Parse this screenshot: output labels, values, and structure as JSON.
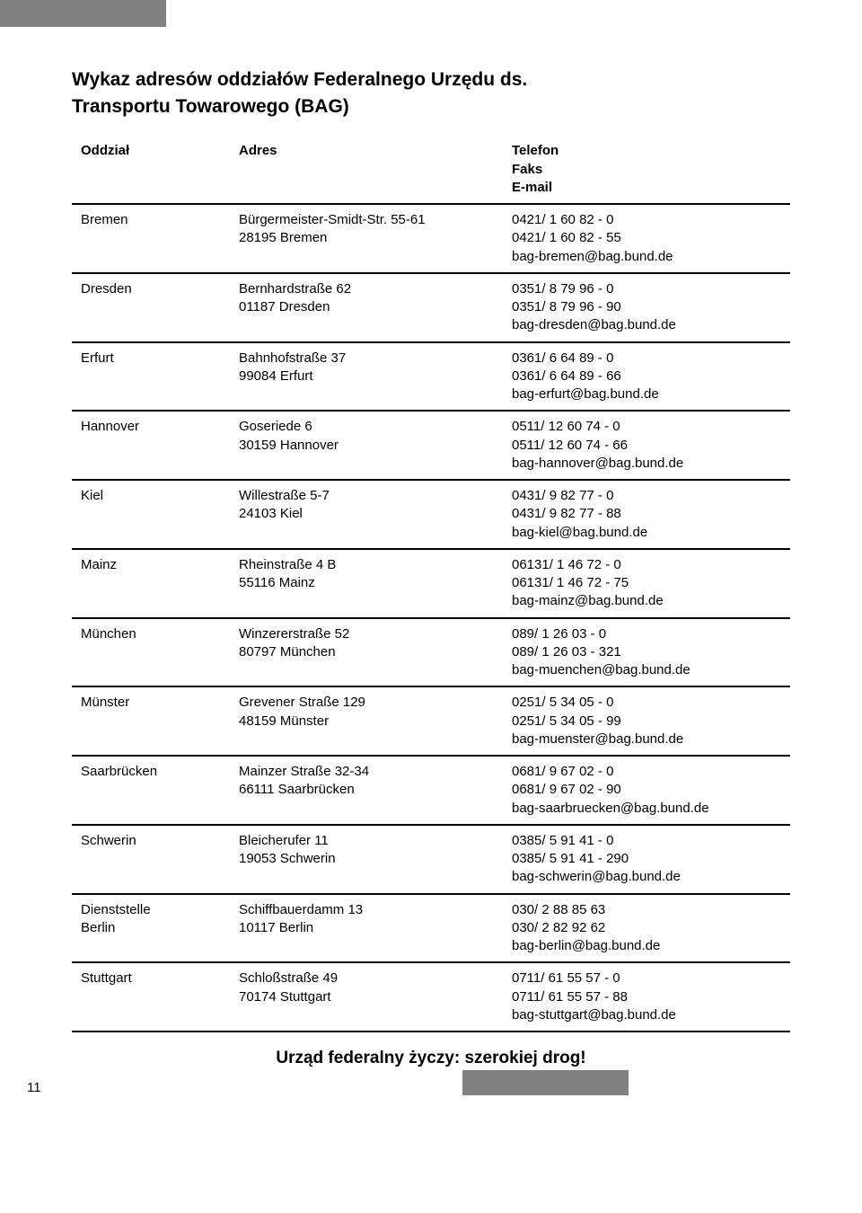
{
  "title": "Wykaz adresów oddziałów Federalnego Urzędu ds.",
  "subtitle": "Transportu Towarowego (BAG)",
  "headers": {
    "office": "Oddział",
    "address": "Adres",
    "contact_l1": "Telefon",
    "contact_l2": "Faks",
    "contact_l3": "E-mail"
  },
  "rows": [
    {
      "office": "Bremen",
      "addr_l1": "Bürgermeister-Smidt-Str. 55-61",
      "addr_l2": "28195 Bremen",
      "tel": "0421/ 1 60 82 - 0",
      "fax": "0421/ 1 60 82 - 55",
      "email": "bag-bremen@bag.bund.de"
    },
    {
      "office": "Dresden",
      "addr_l1": "Bernhardstraße 62",
      "addr_l2": "01187 Dresden",
      "tel": "0351/ 8 79 96 - 0",
      "fax": "0351/ 8 79 96 - 90",
      "email": "bag-dresden@bag.bund.de"
    },
    {
      "office": "Erfurt",
      "addr_l1": "Bahnhofstraße 37",
      "addr_l2": "99084 Erfurt",
      "tel": "0361/ 6 64 89 - 0",
      "fax": "0361/ 6 64 89 - 66",
      "email": "bag-erfurt@bag.bund.de"
    },
    {
      "office": "Hannover",
      "addr_l1": "Goseriede 6",
      "addr_l2": "30159 Hannover",
      "tel": "0511/ 12 60 74 - 0",
      "fax": "0511/ 12 60 74 - 66",
      "email": "bag-hannover@bag.bund.de"
    },
    {
      "office": "Kiel",
      "addr_l1": "Willestraße 5-7",
      "addr_l2": "24103 Kiel",
      "tel": "0431/ 9 82 77 - 0",
      "fax": "0431/ 9 82 77 - 88",
      "email": "bag-kiel@bag.bund.de"
    },
    {
      "office": "Mainz",
      "addr_l1": "Rheinstraße 4 B",
      "addr_l2": "55116 Mainz",
      "tel": "06131/ 1 46 72 - 0",
      "fax": "06131/ 1 46 72 - 75",
      "email": "bag-mainz@bag.bund.de"
    },
    {
      "office": "München",
      "addr_l1": "Winzererstraße 52",
      "addr_l2": "80797 München",
      "tel": "089/ 1 26 03 - 0",
      "fax": "089/ 1 26 03 - 321",
      "email": "bag-muenchen@bag.bund.de"
    },
    {
      "office": "Münster",
      "addr_l1": "Grevener Straße 129",
      "addr_l2": "48159 Münster",
      "tel": "0251/ 5 34 05 - 0",
      "fax": "0251/ 5 34 05 - 99",
      "email": "bag-muenster@bag.bund.de"
    },
    {
      "office": "Saarbrücken",
      "addr_l1": "Mainzer Straße 32-34",
      "addr_l2": "66111 Saarbrücken",
      "tel": "0681/ 9 67 02 - 0",
      "fax": "0681/ 9 67 02 - 90",
      "email": "bag-saarbruecken@bag.bund.de"
    },
    {
      "office": "Schwerin",
      "addr_l1": "Bleicherufer 11",
      "addr_l2": "19053 Schwerin",
      "tel": "0385/ 5 91 41 - 0",
      "fax": "0385/ 5 91 41 - 290",
      "email": "bag-schwerin@bag.bund.de"
    },
    {
      "office_l1": "Dienststelle",
      "office_l2": "Berlin",
      "addr_l1": "Schiffbauerdamm 13",
      "addr_l2": "10117 Berlin",
      "tel": "030/ 2 88 85 63",
      "fax": "030/ 2 82 92 62",
      "email": "bag-berlin@bag.bund.de"
    },
    {
      "office": "Stuttgart",
      "addr_l1": "Schloßstraße 49",
      "addr_l2": "70174 Stuttgart",
      "tel": "0711/ 61 55 57 - 0",
      "fax": "0711/ 61 55 57 - 88",
      "email": "bag-stuttgart@bag.bund.de"
    }
  ],
  "footer": "Urząd federalny życzy: szerokiej drog!",
  "page_number": "11",
  "style": {
    "tab_color": "#808080",
    "border_color": "#000000",
    "font_family": "Arial",
    "title_fontsize": 21,
    "body_fontsize": 15
  }
}
